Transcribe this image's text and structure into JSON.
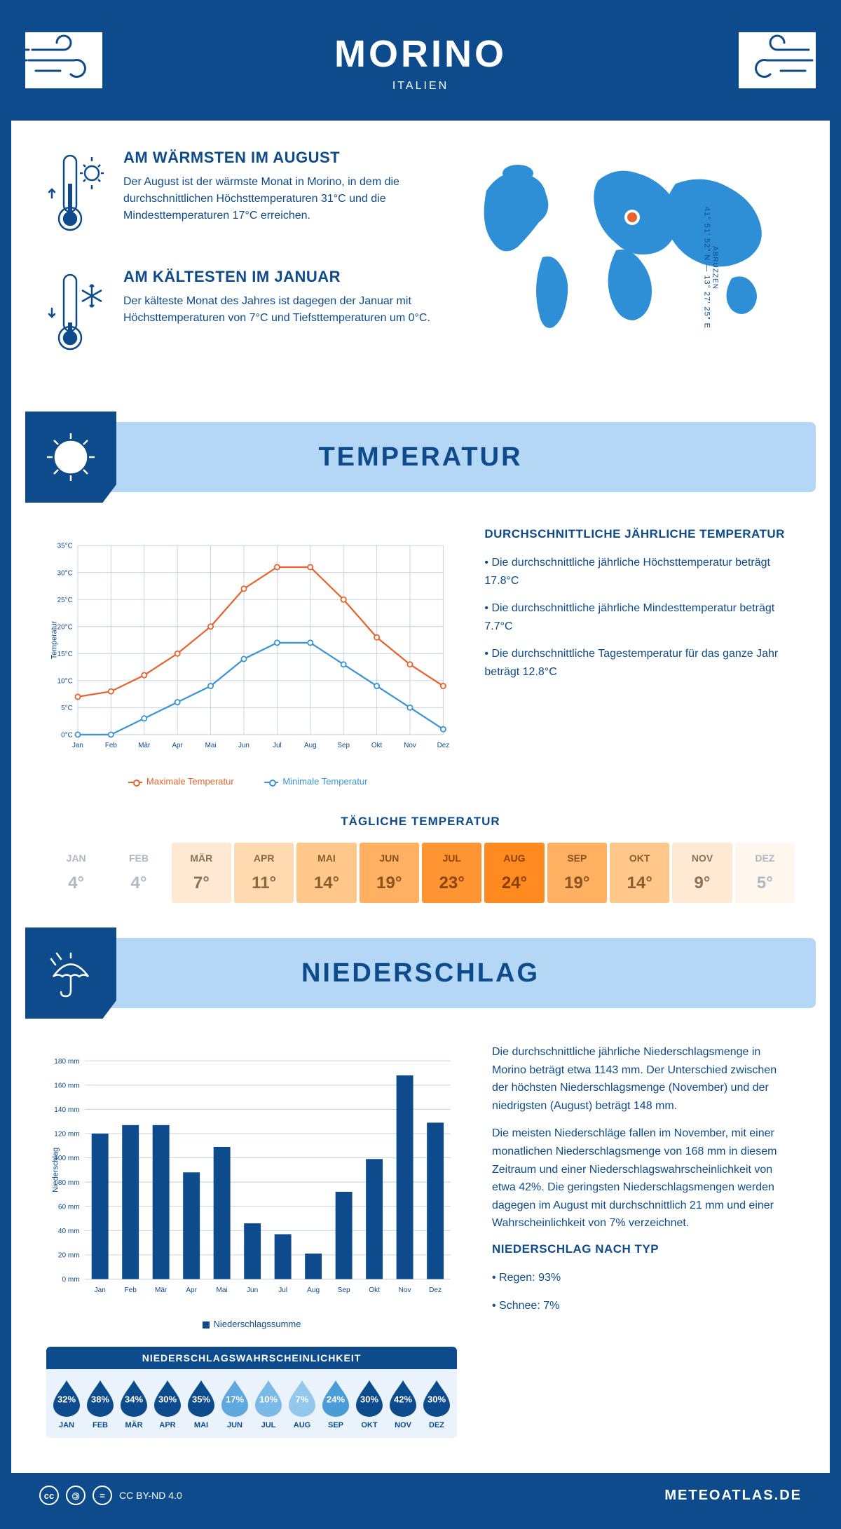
{
  "header": {
    "title": "MORINO",
    "subtitle": "ITALIEN"
  },
  "coords": {
    "text": "41° 51' 52\" N — 13° 27' 25\" E",
    "region": "ABRUZZEN"
  },
  "intro": {
    "warm": {
      "title": "AM WÄRMSTEN IM AUGUST",
      "text": "Der August ist der wärmste Monat in Morino, in dem die durchschnittlichen Höchsttemperaturen 31°C und die Mindesttemperaturen 17°C erreichen."
    },
    "cold": {
      "title": "AM KÄLTESTEN IM JANUAR",
      "text": "Der kälteste Monat des Jahres ist dagegen der Januar mit Höchsttemperaturen von 7°C und Tiefsttemperaturen um 0°C."
    }
  },
  "sections": {
    "temperature": "TEMPERATUR",
    "precipitation": "NIEDERSCHLAG"
  },
  "temp_chart": {
    "months": [
      "Jan",
      "Feb",
      "Mär",
      "Apr",
      "Mai",
      "Jun",
      "Jul",
      "Aug",
      "Sep",
      "Okt",
      "Nov",
      "Dez"
    ],
    "max": [
      7,
      8,
      11,
      15,
      20,
      27,
      31,
      31,
      25,
      18,
      13,
      9
    ],
    "min": [
      0,
      0,
      3,
      6,
      9,
      14,
      17,
      17,
      13,
      9,
      5,
      1
    ],
    "y_min": 0,
    "y_max": 35,
    "y_step": 5,
    "y_axis_title": "Temperatur",
    "max_color": "#e8622c",
    "min_color": "#3a94d6",
    "grid_color": "#c0cfe0",
    "legend_max": "Maximale Temperatur",
    "legend_min": "Minimale Temperatur"
  },
  "temp_text": {
    "title": "DURCHSCHNITTLICHE JÄHRLICHE TEMPERATUR",
    "items": [
      "Die durchschnittliche jährliche Höchsttemperatur beträgt 17.8°C",
      "Die durchschnittliche jährliche Mindesttemperatur beträgt 7.7°C",
      "Die durchschnittliche Tagestemperatur für das ganze Jahr beträgt 12.8°C"
    ]
  },
  "daily_temp": {
    "title": "TÄGLICHE TEMPERATUR",
    "months": [
      "JAN",
      "FEB",
      "MÄR",
      "APR",
      "MAI",
      "JUN",
      "JUL",
      "AUG",
      "SEP",
      "OKT",
      "NOV",
      "DEZ"
    ],
    "values": [
      "4°",
      "4°",
      "7°",
      "11°",
      "14°",
      "19°",
      "23°",
      "24°",
      "19°",
      "14°",
      "9°",
      "5°"
    ],
    "bg_colors": [
      "#ffffff",
      "#ffffff",
      "#ffe9d2",
      "#ffd9b0",
      "#ffc78a",
      "#ffb060",
      "#ff9433",
      "#ff8a1f",
      "#ffb060",
      "#ffc78a",
      "#ffe9d2",
      "#fff6ee"
    ],
    "text_colors": [
      "#b0b8c4",
      "#b0b8c4",
      "#8a7258",
      "#8a6a42",
      "#8a5e2e",
      "#8a5220",
      "#8a4510",
      "#8a4008",
      "#8a5220",
      "#8a5e2e",
      "#8a7258",
      "#b0b8c4"
    ]
  },
  "precip_chart": {
    "months": [
      "Jan",
      "Feb",
      "Mär",
      "Apr",
      "Mai",
      "Jun",
      "Jul",
      "Aug",
      "Sep",
      "Okt",
      "Nov",
      "Dez"
    ],
    "values": [
      120,
      127,
      127,
      88,
      109,
      46,
      37,
      21,
      72,
      99,
      168,
      129
    ],
    "y_min": 0,
    "y_max": 180,
    "y_step": 20,
    "y_axis_title": "Niederschlag",
    "bar_color": "#0d4b8c",
    "grid_color": "#c0cfe0",
    "legend": "Niederschlagssumme"
  },
  "precip_text": {
    "p1": "Die durchschnittliche jährliche Niederschlagsmenge in Morino beträgt etwa 1143 mm. Der Unterschied zwischen der höchsten Niederschlagsmenge (November) und der niedrigsten (August) beträgt 148 mm.",
    "p2": "Die meisten Niederschläge fallen im November, mit einer monatlichen Niederschlagsmenge von 168 mm in diesem Zeitraum und einer Niederschlagswahrscheinlichkeit von etwa 42%. Die geringsten Niederschlagsmengen werden dagegen im August mit durchschnittlich 21 mm und einer Wahrscheinlichkeit von 7% verzeichnet.",
    "type_title": "NIEDERSCHLAG NACH TYP",
    "type_items": [
      "Regen: 93%",
      "Schnee: 7%"
    ]
  },
  "precip_prob": {
    "title": "NIEDERSCHLAGSWAHRSCHEINLICHKEIT",
    "months": [
      "JAN",
      "FEB",
      "MÄR",
      "APR",
      "MAI",
      "JUN",
      "JUL",
      "AUG",
      "SEP",
      "OKT",
      "NOV",
      "DEZ"
    ],
    "pct": [
      "32%",
      "38%",
      "34%",
      "30%",
      "35%",
      "17%",
      "10%",
      "7%",
      "24%",
      "30%",
      "42%",
      "30%"
    ],
    "colors": [
      "#0d4b8c",
      "#0d4b8c",
      "#0d4b8c",
      "#0d4b8c",
      "#0d4b8c",
      "#5ea8dd",
      "#7bb9e6",
      "#93c7ec",
      "#4a9bd6",
      "#0d4b8c",
      "#0d4b8c",
      "#0d4b8c"
    ]
  },
  "footer": {
    "license": "CC BY-ND 4.0",
    "site": "METEOATLAS.DE"
  },
  "colors": {
    "primary": "#0d4b8c",
    "banner_bg": "#b3d7f5"
  }
}
